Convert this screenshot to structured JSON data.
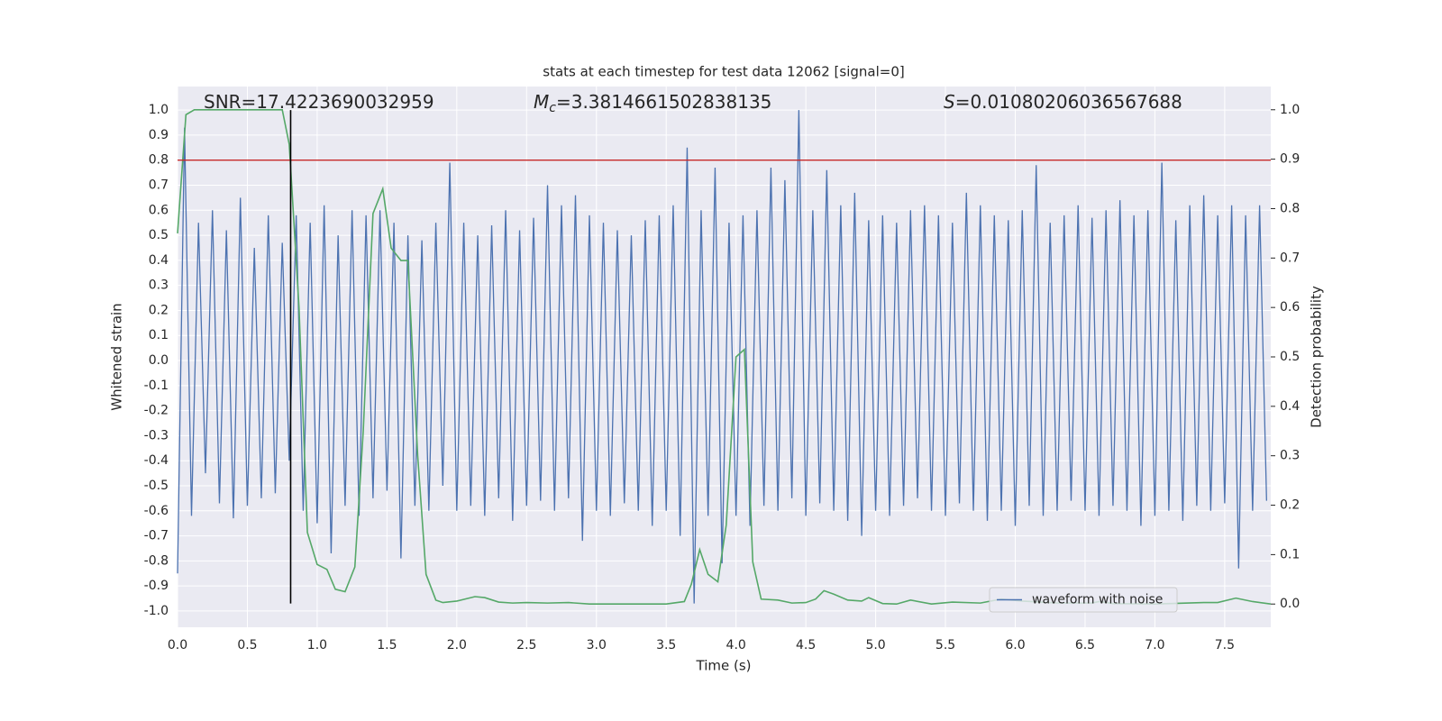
{
  "chart_data": {
    "type": "line",
    "title": "stats at each timestep for test data 12062 [signal=0]",
    "xlabel": "Time (s)",
    "ylabel": "Whitened strain",
    "y2label": "Detection probability",
    "annotations": [
      {
        "text": "SNR=17.4223690032959"
      },
      {
        "symbol": "M",
        "subscript": "c",
        "text": "=3.3814661502838135"
      },
      {
        "symbol": "S",
        "text": "=0.01080206036567688"
      }
    ],
    "xlim": [
      0,
      7.83
    ],
    "ylim": [
      -1.065,
      1.094
    ],
    "y2lim": [
      -0.047,
      1.047
    ],
    "xticks": [
      {
        "value": 0,
        "label": "0.0"
      },
      0.5,
      {
        "value": 1,
        "label": "1.0"
      },
      1.5,
      {
        "value": 2,
        "label": "2.0"
      },
      2.5,
      {
        "value": 3,
        "label": "3.0"
      },
      3.5,
      {
        "value": 4,
        "label": "4.0"
      },
      4.5,
      {
        "value": 5,
        "label": "5.0"
      },
      5.5,
      {
        "value": 6,
        "label": "6.0"
      },
      6.5,
      {
        "value": 7,
        "label": "7.0"
      },
      7.5
    ],
    "yticks": [
      {
        "value": -1,
        "label": "-1.0"
      },
      -0.9,
      -0.8,
      -0.7,
      -0.6,
      -0.5,
      -0.4,
      -0.3,
      -0.2,
      -0.1,
      {
        "value": 0,
        "label": "0.0"
      },
      0.1,
      0.2,
      0.3,
      0.4,
      0.5,
      0.6,
      0.7,
      0.8,
      0.9,
      {
        "value": 1,
        "label": "1.0"
      }
    ],
    "y2ticks": [
      {
        "value": 0,
        "label": "0.0"
      },
      0.1,
      0.2,
      0.3,
      0.4,
      0.5,
      0.6,
      0.7,
      0.8,
      0.9,
      {
        "value": 1,
        "label": "1.0"
      }
    ],
    "grid": true,
    "legend": "lower right",
    "hline": {
      "y": 0.8,
      "color": "#c62828"
    },
    "vline": {
      "x": 0.81,
      "y": [
        -0.97,
        1.0
      ],
      "color": "#000000"
    },
    "series": [
      {
        "name": "waveform with noise",
        "color": "#4c72b0",
        "x": [
          0,
          0.05,
          0.1,
          0.15,
          0.2,
          0.25,
          0.3,
          0.35,
          0.4,
          0.45,
          0.5,
          0.55,
          0.6,
          0.65,
          0.7,
          0.75,
          0.8,
          0.85,
          0.9,
          0.95,
          1,
          1.05,
          1.1,
          1.15,
          1.2,
          1.25,
          1.3,
          1.35,
          1.4,
          1.45,
          1.5,
          1.55,
          1.6,
          1.65,
          1.7,
          1.75,
          1.8,
          1.85,
          1.9,
          1.95,
          2,
          2.05,
          2.1,
          2.15,
          2.2,
          2.25,
          2.3,
          2.35,
          2.4,
          2.45,
          2.5,
          2.55,
          2.6,
          2.65,
          2.7,
          2.75,
          2.8,
          2.85,
          2.9,
          2.95,
          3,
          3.05,
          3.1,
          3.15,
          3.2,
          3.25,
          3.3,
          3.35,
          3.4,
          3.45,
          3.5,
          3.55,
          3.6,
          3.65,
          3.7,
          3.75,
          3.8,
          3.85,
          3.9,
          3.95,
          4,
          4.05,
          4.1,
          4.15,
          4.2,
          4.25,
          4.3,
          4.35,
          4.4,
          4.45,
          4.5,
          4.55,
          4.6,
          4.65,
          4.7,
          4.75,
          4.8,
          4.85,
          4.9,
          4.95,
          5,
          5.05,
          5.1,
          5.15,
          5.2,
          5.25,
          5.3,
          5.35,
          5.4,
          5.45,
          5.5,
          5.55,
          5.6,
          5.65,
          5.7,
          5.75,
          5.8,
          5.85,
          5.9,
          5.95,
          6,
          6.05,
          6.1,
          6.15,
          6.2,
          6.25,
          6.3,
          6.35,
          6.4,
          6.45,
          6.5,
          6.55,
          6.6,
          6.65,
          6.7,
          6.75,
          6.8,
          6.85,
          6.9,
          6.95,
          7,
          7.05,
          7.1,
          7.15,
          7.2,
          7.25,
          7.3,
          7.35,
          7.4,
          7.45,
          7.5,
          7.55,
          7.6,
          7.65,
          7.7,
          7.75,
          7.8
        ],
        "values": [
          -0.85,
          0.93,
          -0.62,
          0.55,
          -0.45,
          0.6,
          -0.57,
          0.52,
          -0.63,
          0.65,
          -0.58,
          0.45,
          -0.55,
          0.58,
          -0.53,
          0.47,
          -0.4,
          0.58,
          -0.6,
          0.55,
          -0.65,
          0.62,
          -0.77,
          0.5,
          -0.58,
          0.6,
          -0.62,
          0.58,
          -0.55,
          0.6,
          -0.52,
          0.55,
          -0.79,
          0.5,
          -0.58,
          0.48,
          -0.6,
          0.55,
          -0.5,
          0.79,
          -0.6,
          0.55,
          -0.58,
          0.5,
          -0.62,
          0.54,
          -0.55,
          0.6,
          -0.64,
          0.52,
          -0.58,
          0.57,
          -0.56,
          0.7,
          -0.6,
          0.62,
          -0.55,
          0.66,
          -0.72,
          0.58,
          -0.6,
          0.55,
          -0.62,
          0.52,
          -0.57,
          0.5,
          -0.6,
          0.56,
          -0.66,
          0.58,
          -0.6,
          0.62,
          -0.7,
          0.85,
          -0.97,
          0.6,
          -0.62,
          0.77,
          -0.81,
          0.55,
          -0.62,
          0.58,
          -0.66,
          0.6,
          -0.58,
          0.77,
          -0.6,
          0.72,
          -0.55,
          1.0,
          -0.62,
          0.6,
          -0.57,
          0.76,
          -0.6,
          0.62,
          -0.64,
          0.67,
          -0.7,
          0.56,
          -0.6,
          0.58,
          -0.62,
          0.55,
          -0.58,
          0.6,
          -0.55,
          0.62,
          -0.6,
          0.58,
          -0.62,
          0.55,
          -0.57,
          0.67,
          -0.6,
          0.62,
          -0.64,
          0.58,
          -0.6,
          0.56,
          -0.66,
          0.6,
          -0.58,
          0.78,
          -0.62,
          0.55,
          -0.6,
          0.58,
          -0.56,
          0.62,
          -0.6,
          0.57,
          -0.62,
          0.6,
          -0.58,
          0.64,
          -0.6,
          0.58,
          -0.66,
          0.6,
          -0.62,
          0.79,
          -0.6,
          0.56,
          -0.64,
          0.62,
          -0.58,
          0.66,
          -0.6,
          0.58,
          -0.57,
          0.62,
          -0.83,
          0.58,
          -0.6,
          0.62,
          -0.56
        ]
      },
      {
        "color": "#55a868",
        "axis": "y2",
        "x": [
          0,
          0.06,
          0.12,
          0.3,
          0.5,
          0.75,
          0.8,
          0.87,
          0.93,
          1,
          1.07,
          1.13,
          1.2,
          1.27,
          1.33,
          1.4,
          1.47,
          1.53,
          1.6,
          1.65,
          1.72,
          1.78,
          1.85,
          1.9,
          2,
          2.13,
          2.2,
          2.3,
          2.4,
          2.5,
          2.65,
          2.8,
          2.95,
          3.2,
          3.5,
          3.63,
          3.68,
          3.74,
          3.8,
          3.87,
          3.93,
          4,
          4.06,
          4.12,
          4.18,
          4.3,
          4.4,
          4.5,
          4.57,
          4.63,
          4.7,
          4.8,
          4.9,
          4.95,
          5.05,
          5.15,
          5.25,
          5.4,
          5.55,
          5.75,
          5.9,
          6.05,
          6.3,
          6.55,
          6.6,
          6.7,
          7,
          7.35,
          7.45,
          7.58,
          7.7,
          7.83
        ],
        "values": [
          0.75,
          0.99,
          1.0,
          1.0,
          1.0,
          1.0,
          0.93,
          0.6,
          0.145,
          0.08,
          0.07,
          0.03,
          0.025,
          0.075,
          0.35,
          0.79,
          0.84,
          0.72,
          0.695,
          0.695,
          0.3,
          0.06,
          0.008,
          0.003,
          0.006,
          0.015,
          0.013,
          0.004,
          0.002,
          0.003,
          0.002,
          0.003,
          0.0,
          0.0,
          0.0,
          0.005,
          0.04,
          0.11,
          0.06,
          0.045,
          0.16,
          0.5,
          0.515,
          0.085,
          0.01,
          0.008,
          0.002,
          0.003,
          0.01,
          0.027,
          0.02,
          0.008,
          0.006,
          0.013,
          0.001,
          0.0,
          0.008,
          0.0,
          0.004,
          0.002,
          0.01,
          0.006,
          0.002,
          0.002,
          0.005,
          0.001,
          0.0,
          0.003,
          0.003,
          0.012,
          0.005,
          0.0
        ]
      }
    ]
  }
}
